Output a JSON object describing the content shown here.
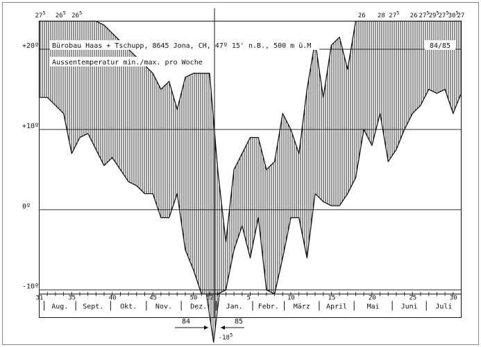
{
  "chart_data": {
    "type": "area",
    "title": "Bürobau Haas + Tschupp, 8645 Jona, CH, 47º 15' n.B., 500 m ü.M",
    "subtitle": "Aussentemperatur min./max. pro Woche",
    "period_label": "84/85",
    "year_labels": [
      "84",
      "85"
    ],
    "y_unit": "°C",
    "ylim": [
      -10.5,
      23.5
    ],
    "y_ticks": [
      {
        "value": 20,
        "label": "+20º"
      },
      {
        "value": 10,
        "label": "+10º"
      },
      {
        "value": 0,
        "label": "0º"
      },
      {
        "value": -10,
        "label": "-10º"
      }
    ],
    "grid": true,
    "week_ticks": [
      {
        "week": 31,
        "label": "31"
      },
      {
        "week": 35,
        "label": "35"
      },
      {
        "week": 40,
        "label": "40"
      },
      {
        "week": 45,
        "label": "45"
      },
      {
        "week": 50,
        "label": "50"
      },
      {
        "week": 52,
        "label": "52"
      },
      {
        "week": 57,
        "label": "5"
      },
      {
        "week": 62,
        "label": "10"
      },
      {
        "week": 67,
        "label": "15"
      },
      {
        "week": 72,
        "label": "20"
      },
      {
        "week": 77,
        "label": "25"
      },
      {
        "week": 82,
        "label": "30"
      }
    ],
    "months": [
      {
        "label": "Aug.",
        "start": 31.6,
        "end": 35.5
      },
      {
        "label": "Sept.",
        "start": 35.5,
        "end": 39.8
      },
      {
        "label": "Okt.",
        "start": 39.8,
        "end": 44.2
      },
      {
        "label": "Nov.",
        "start": 44.2,
        "end": 48.5
      },
      {
        "label": "Dez.",
        "start": 48.5,
        "end": 52.8
      },
      {
        "label": "Jan.",
        "start": 52.8,
        "end": 57.3
      },
      {
        "label": "Febr.",
        "start": 57.3,
        "end": 61.2
      },
      {
        "label": "März",
        "start": 61.2,
        "end": 65.5
      },
      {
        "label": "April",
        "start": 65.5,
        "end": 69.8
      },
      {
        "label": "Mai",
        "start": 69.8,
        "end": 74.5
      },
      {
        "label": "Juni",
        "start": 74.5,
        "end": 78.7
      },
      {
        "label": "Juli",
        "start": 78.7,
        "end": 83.0
      }
    ],
    "year_boundary_week": 52.6,
    "x": [
      31,
      32,
      33,
      34,
      35,
      36,
      37,
      38,
      39,
      40,
      41,
      42,
      43,
      44,
      45,
      46,
      47,
      48,
      49,
      50,
      51,
      52,
      53,
      54,
      55,
      56,
      57,
      58,
      59,
      60,
      61,
      62,
      63,
      64,
      65,
      66,
      67,
      68,
      69,
      70,
      71,
      72,
      73,
      74,
      75,
      76,
      77,
      78,
      79,
      80,
      81,
      82,
      83
    ],
    "series": [
      {
        "values": [
          27,
          28,
          26.5,
          25,
          25.5,
          25,
          25,
          24,
          23,
          22,
          21,
          20,
          19,
          18,
          17,
          15,
          16,
          12.5,
          16.5,
          17,
          17,
          17,
          5,
          -4,
          5,
          7,
          9,
          9,
          5,
          6,
          12,
          10,
          7,
          15,
          21,
          14,
          20.5,
          21.5,
          17.5,
          26,
          26,
          26,
          28,
          27.5,
          26,
          26,
          25,
          26,
          27.5,
          27,
          27,
          27.5,
          27
        ]
      },
      {
        "values": [
          14,
          14,
          13,
          12,
          7,
          9,
          9.5,
          7.5,
          5.5,
          6.5,
          5,
          3.5,
          3,
          2,
          2,
          -1,
          -1,
          2,
          -5,
          -7.5,
          -13,
          -16,
          -12,
          -10,
          -5,
          -2,
          -6,
          -1,
          -10,
          -15,
          -6,
          -1,
          -1,
          -6,
          2,
          1,
          0.5,
          0.5,
          2,
          4,
          10,
          8,
          12,
          6,
          7.5,
          10,
          12,
          13,
          15,
          14.5,
          15,
          12,
          14.5
        ]
      }
    ],
    "top_annotations": [
      {
        "week": 31,
        "text": "27",
        "sup": "5"
      },
      {
        "week": 33.5,
        "text": "26",
        "sup": "5"
      },
      {
        "week": 35.5,
        "text": "26",
        "sup": "5"
      },
      {
        "week": 70.8,
        "text": "26",
        "sup": ""
      },
      {
        "week": 73.2,
        "text": "28",
        "sup": ""
      },
      {
        "week": 74.6,
        "text": "27",
        "sup": "5"
      },
      {
        "week": 77.2,
        "text": "26",
        "sup": ""
      },
      {
        "week": 78.3,
        "text": "27",
        "sup": "5"
      },
      {
        "week": 79.5,
        "text": "29",
        "sup": "5"
      },
      {
        "week": 80.7,
        "text": "27",
        "sup": "5"
      },
      {
        "week": 81.9,
        "text": "30",
        "sup": "5"
      },
      {
        "week": 83.0,
        "text": "27",
        "sup": ""
      }
    ],
    "bottom_annotation": {
      "text": "-18",
      "sup": "5"
    }
  }
}
